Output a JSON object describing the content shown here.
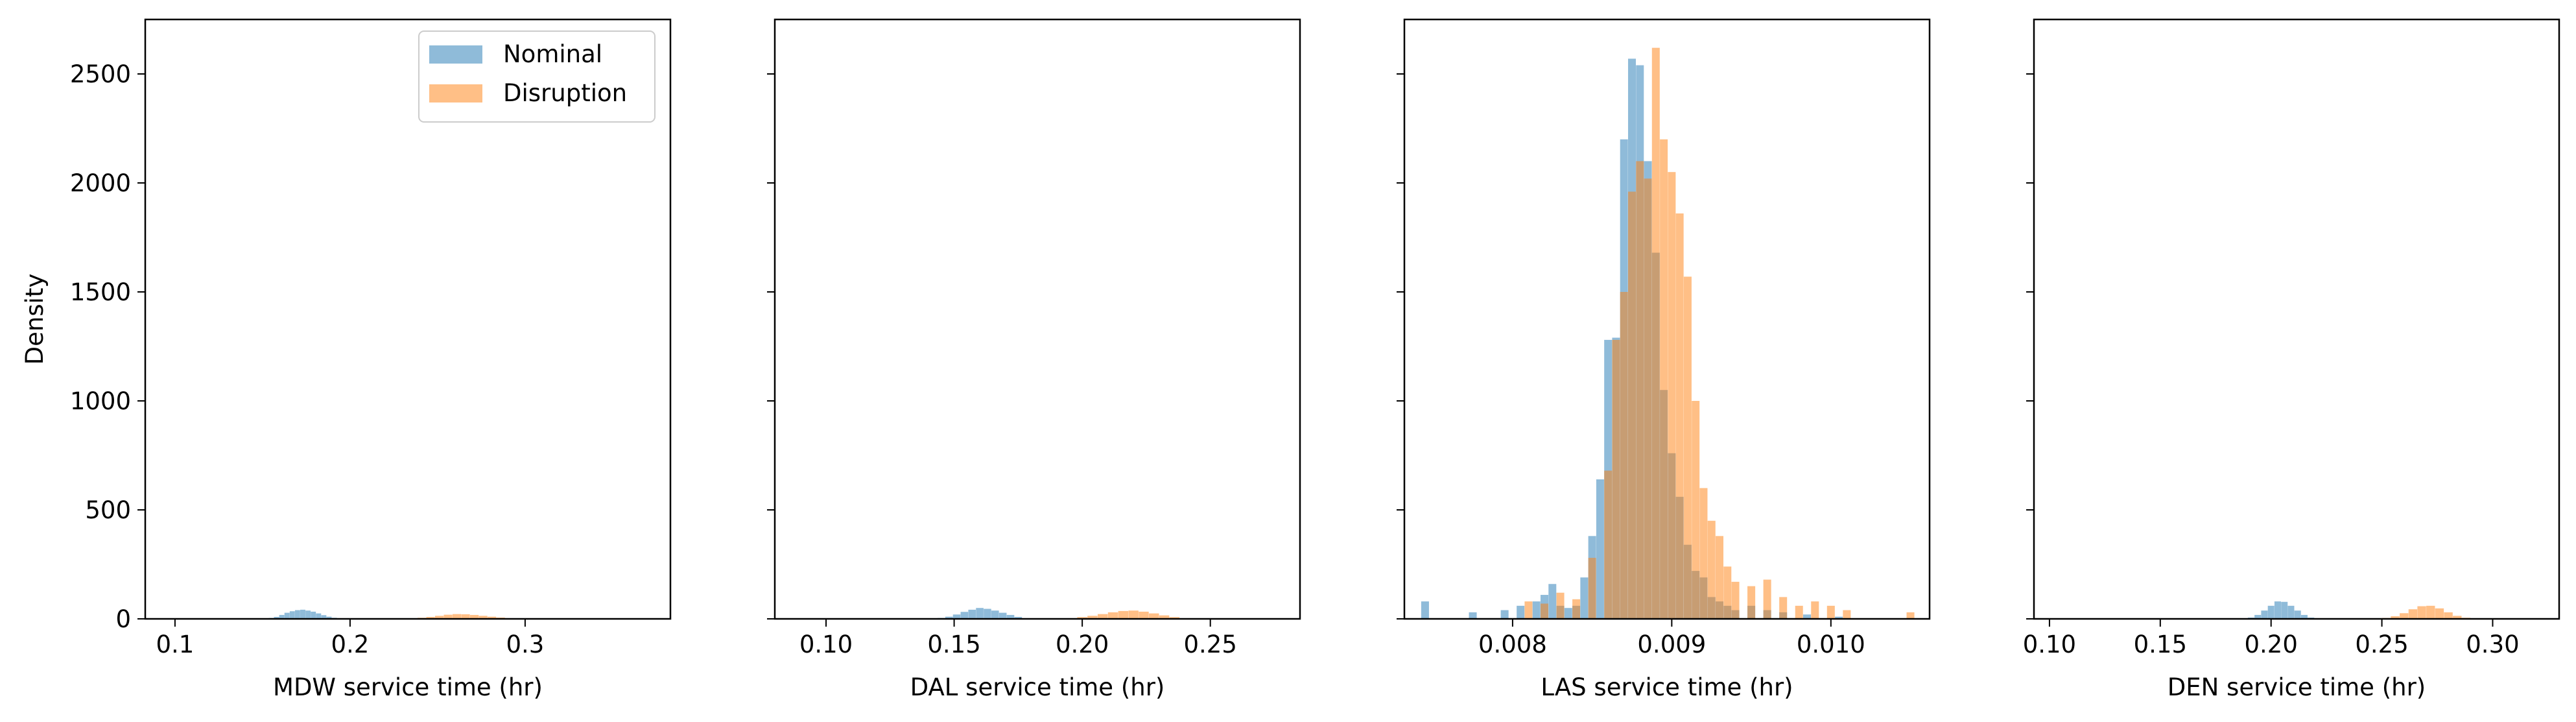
{
  "figure": {
    "legend_position": "upper-right of first panel",
    "colors": {
      "Nominal": "#1f77b4",
      "Disruption": "#ff7f0e"
    },
    "alpha": 0.5
  },
  "chart_data": [
    {
      "type": "bar",
      "subtype": "histogram",
      "xlabel": "MDW service time (hr)",
      "ylabel": "Density",
      "xlim": [
        0.083,
        0.383
      ],
      "ylim": [
        0,
        2750
      ],
      "xticks": [
        0.1,
        0.2,
        0.3
      ],
      "xtick_labels": [
        "0.1",
        "0.2",
        "0.3"
      ],
      "yticks": [
        0,
        500,
        1000,
        1500,
        2000,
        2500
      ],
      "ytick_labels": [
        "0",
        "500",
        "1000",
        "1500",
        "2000",
        "2500"
      ],
      "show_ytick_labels": true,
      "legend": [
        "Nominal",
        "Disruption"
      ],
      "series": [
        {
          "name": "Nominal",
          "x": [
            0.155,
            0.158,
            0.161,
            0.164,
            0.167,
            0.17,
            0.173,
            0.176,
            0.179,
            0.182,
            0.185,
            0.188,
            0.191,
            0.194
          ],
          "values": [
            4,
            9,
            18,
            28,
            35,
            40,
            42,
            38,
            33,
            25,
            17,
            10,
            5,
            2
          ]
        },
        {
          "name": "Disruption",
          "x": [
            0.236,
            0.241,
            0.246,
            0.251,
            0.256,
            0.261,
            0.266,
            0.271,
            0.276,
            0.281,
            0.286,
            0.291,
            0.296
          ],
          "values": [
            2,
            5,
            9,
            14,
            19,
            22,
            21,
            18,
            14,
            10,
            6,
            3,
            1
          ]
        }
      ]
    },
    {
      "type": "bar",
      "subtype": "histogram",
      "xlabel": "DAL service time (hr)",
      "ylabel": "",
      "xlim": [
        0.08,
        0.285
      ],
      "ylim": [
        0,
        2750
      ],
      "xticks": [
        0.1,
        0.15,
        0.2,
        0.25
      ],
      "xtick_labels": [
        "0.10",
        "0.15",
        "0.20",
        "0.25"
      ],
      "yticks": [
        0,
        500,
        1000,
        1500,
        2000,
        2500
      ],
      "show_ytick_labels": false,
      "series": [
        {
          "name": "Nominal",
          "x": [
            0.145,
            0.148,
            0.151,
            0.154,
            0.157,
            0.16,
            0.163,
            0.166,
            0.169,
            0.172,
            0.175,
            0.178
          ],
          "values": [
            4,
            10,
            20,
            32,
            42,
            50,
            46,
            38,
            28,
            18,
            9,
            3
          ]
        },
        {
          "name": "Disruption",
          "x": [
            0.196,
            0.2,
            0.204,
            0.208,
            0.212,
            0.216,
            0.22,
            0.224,
            0.228,
            0.232,
            0.236,
            0.24
          ],
          "values": [
            3,
            8,
            14,
            22,
            30,
            36,
            38,
            33,
            25,
            16,
            8,
            3
          ]
        }
      ]
    },
    {
      "type": "bar",
      "subtype": "histogram",
      "xlabel": "LAS service time (hr)",
      "ylabel": "",
      "xlim": [
        0.00732,
        0.01062
      ],
      "ylim": [
        0,
        2750
      ],
      "xticks": [
        0.008,
        0.009,
        0.01
      ],
      "xtick_labels": [
        "0.008",
        "0.009",
        "0.010"
      ],
      "yticks": [
        0,
        500,
        1000,
        1500,
        2000,
        2500
      ],
      "show_ytick_labels": false,
      "series": [
        {
          "name": "Nominal",
          "x": [
            0.00745,
            0.00775,
            0.00795,
            0.00805,
            0.00815,
            0.0082,
            0.00825,
            0.0083,
            0.00835,
            0.0084,
            0.00845,
            0.0085,
            0.00855,
            0.0086,
            0.00865,
            0.0087,
            0.00875,
            0.0088,
            0.00885,
            0.0089,
            0.00895,
            0.009,
            0.00905,
            0.0091,
            0.00915,
            0.0092,
            0.00925,
            0.0093,
            0.00935,
            0.0094,
            0.0095,
            0.0096,
            0.0097,
            0.00985,
            0.01005
          ],
          "values": [
            80,
            30,
            40,
            60,
            80,
            110,
            160,
            60,
            50,
            60,
            190,
            380,
            640,
            1280,
            1290,
            2200,
            2570,
            2540,
            2100,
            1680,
            1050,
            760,
            560,
            340,
            220,
            190,
            100,
            80,
            60,
            40,
            60,
            40,
            30,
            20,
            10
          ]
        },
        {
          "name": "Disruption",
          "x": [
            0.0081,
            0.0082,
            0.0083,
            0.0084,
            0.0085,
            0.0086,
            0.00865,
            0.0087,
            0.00875,
            0.0088,
            0.00885,
            0.0089,
            0.00895,
            0.009,
            0.00905,
            0.0091,
            0.00915,
            0.0092,
            0.00925,
            0.0093,
            0.00935,
            0.0094,
            0.0095,
            0.0096,
            0.0097,
            0.0098,
            0.0099,
            0.01,
            0.0101,
            0.0105
          ],
          "values": [
            80,
            70,
            120,
            90,
            280,
            680,
            1280,
            1500,
            1960,
            2100,
            2020,
            2620,
            2200,
            2050,
            1860,
            1570,
            1000,
            600,
            450,
            380,
            240,
            170,
            150,
            180,
            100,
            60,
            80,
            60,
            40,
            30
          ]
        }
      ]
    },
    {
      "type": "bar",
      "subtype": "histogram",
      "xlabel": "DEN service time (hr)",
      "ylabel": "",
      "xlim": [
        0.093,
        0.33
      ],
      "ylim": [
        0,
        2750
      ],
      "xticks": [
        0.1,
        0.15,
        0.2,
        0.25,
        0.3
      ],
      "xtick_labels": [
        "0.10",
        "0.15",
        "0.20",
        "0.25",
        "0.30"
      ],
      "yticks": [
        0,
        500,
        1000,
        1500,
        2000,
        2500
      ],
      "show_ytick_labels": false,
      "series": [
        {
          "name": "Nominal",
          "x": [
            0.191,
            0.194,
            0.197,
            0.2,
            0.203,
            0.206,
            0.209,
            0.212,
            0.215,
            0.218
          ],
          "values": [
            6,
            18,
            38,
            60,
            80,
            78,
            60,
            38,
            18,
            6
          ]
        },
        {
          "name": "Disruption",
          "x": [
            0.252,
            0.256,
            0.26,
            0.264,
            0.268,
            0.272,
            0.276,
            0.28,
            0.284,
            0.288
          ],
          "values": [
            4,
            12,
            26,
            44,
            58,
            60,
            48,
            30,
            14,
            5
          ]
        }
      ]
    }
  ]
}
